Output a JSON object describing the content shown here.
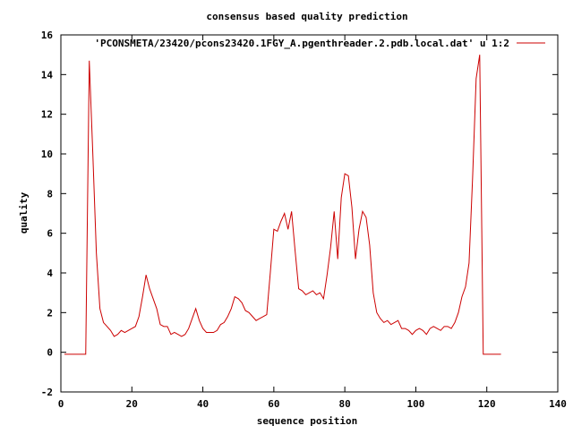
{
  "chart_data": {
    "type": "line",
    "title": "consensus based quality prediction",
    "xlabel": "sequence position",
    "ylabel": "quality",
    "xlim": [
      0,
      140
    ],
    "ylim": [
      -2,
      16
    ],
    "xticks": [
      0,
      20,
      40,
      60,
      80,
      100,
      120,
      140
    ],
    "yticks": [
      -2,
      0,
      2,
      4,
      6,
      8,
      10,
      12,
      14,
      16
    ],
    "grid": false,
    "legend_position": "top-right",
    "series_color": "#cc0000",
    "series": [
      {
        "name": "'PCONSMETA/23420/pcons23420.1FGY_A.pgenthreader.2.pdb.local.dat' u 1:2",
        "x": [
          1,
          2,
          3,
          4,
          5,
          6,
          7,
          8,
          9,
          10,
          11,
          12,
          13,
          14,
          15,
          16,
          17,
          18,
          19,
          20,
          21,
          22,
          23,
          24,
          25,
          26,
          27,
          28,
          29,
          30,
          31,
          32,
          33,
          34,
          35,
          36,
          37,
          38,
          39,
          40,
          41,
          42,
          43,
          44,
          45,
          46,
          47,
          48,
          49,
          50,
          51,
          52,
          53,
          54,
          55,
          56,
          57,
          58,
          59,
          60,
          61,
          62,
          63,
          64,
          65,
          66,
          67,
          68,
          69,
          70,
          71,
          72,
          73,
          74,
          75,
          76,
          77,
          78,
          79,
          80,
          81,
          82,
          83,
          84,
          85,
          86,
          87,
          88,
          89,
          90,
          91,
          92,
          93,
          94,
          95,
          96,
          97,
          98,
          99,
          100,
          101,
          102,
          103,
          104,
          105,
          106,
          107,
          108,
          109,
          110,
          111,
          112,
          113,
          114,
          115,
          116,
          117,
          118,
          119,
          120,
          121,
          122,
          123,
          124
        ],
        "values": [
          -0.1,
          -0.1,
          -0.1,
          -0.1,
          -0.1,
          -0.1,
          -0.1,
          14.7,
          10.0,
          5.0,
          2.2,
          1.5,
          1.3,
          1.1,
          0.8,
          0.9,
          1.1,
          1.0,
          1.1,
          1.2,
          1.3,
          1.8,
          2.8,
          3.9,
          3.2,
          2.7,
          2.2,
          1.4,
          1.3,
          1.3,
          0.9,
          1.0,
          0.9,
          0.8,
          0.9,
          1.2,
          1.7,
          2.2,
          1.6,
          1.2,
          1.0,
          1.0,
          1.0,
          1.1,
          1.4,
          1.5,
          1.8,
          2.2,
          2.8,
          2.7,
          2.5,
          2.1,
          2.0,
          1.8,
          1.6,
          1.7,
          1.8,
          1.9,
          4.0,
          6.2,
          6.1,
          6.6,
          7.0,
          6.2,
          7.1,
          5.1,
          3.2,
          3.1,
          2.9,
          3.0,
          3.1,
          2.9,
          3.0,
          2.7,
          3.9,
          5.3,
          7.1,
          4.7,
          7.8,
          9.0,
          8.9,
          7.3,
          4.7,
          6.2,
          7.1,
          6.8,
          5.4,
          3.0,
          2.0,
          1.7,
          1.5,
          1.6,
          1.4,
          1.5,
          1.6,
          1.2,
          1.2,
          1.1,
          0.9,
          1.1,
          1.2,
          1.1,
          0.9,
          1.2,
          1.3,
          1.2,
          1.1,
          1.3,
          1.3,
          1.2,
          1.5,
          2.0,
          2.8,
          3.3,
          4.5,
          8.8,
          13.8,
          15.0,
          -0.1,
          -0.1,
          -0.1,
          -0.1,
          -0.1,
          -0.1
        ]
      }
    ]
  }
}
